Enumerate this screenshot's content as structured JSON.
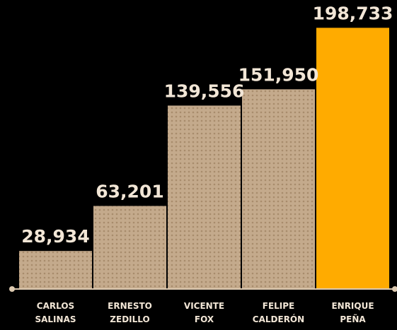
{
  "chart_data": {
    "type": "bar",
    "categories": [
      [
        "CARLOS",
        "SALINAS"
      ],
      [
        "ERNESTO",
        "ZEDILLO"
      ],
      [
        "VICENTE",
        "FOX"
      ],
      [
        "FELIPE",
        "CALDERÓN"
      ],
      [
        "ENRIQUE",
        "PEÑA"
      ]
    ],
    "values": [
      28934,
      63201,
      139556,
      151950,
      198733
    ],
    "value_labels": [
      "28,934",
      "63,201",
      "139,556",
      "151,950",
      "198,733"
    ],
    "highlight_index": 4,
    "ylim": [
      0,
      200000
    ],
    "grid": false,
    "legend": "none"
  },
  "colors": {
    "background": "#000000",
    "bar": "#c4aa8c",
    "bar_dots": "#a88c6c",
    "highlight": "#ffab00",
    "text": "#f2e6d6",
    "axis": "#dcc9b0"
  }
}
